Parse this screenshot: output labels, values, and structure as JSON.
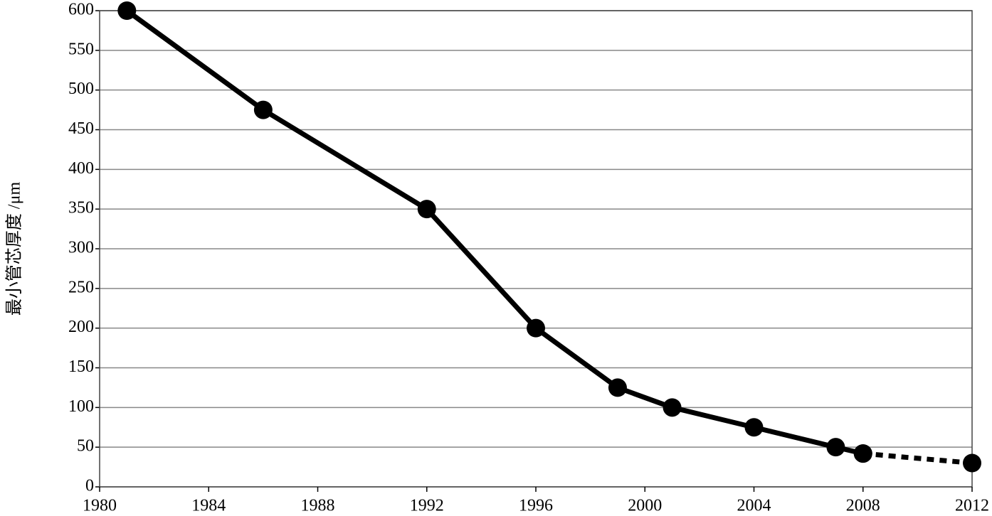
{
  "chart_data": {
    "type": "line",
    "y_label": "最小管芯厚度 /μm",
    "x": [
      1981,
      1986,
      1992,
      1996,
      1999,
      2001,
      2004,
      2007,
      2008,
      2012
    ],
    "series": [
      {
        "color": "#000000",
        "dash": false,
        "values": [
          600,
          475,
          350,
          200,
          125,
          100,
          75,
          50,
          42,
          null
        ]
      },
      {
        "color": "#000000",
        "dash": true,
        "values": [
          null,
          null,
          null,
          null,
          null,
          null,
          null,
          null,
          42,
          30
        ]
      }
    ],
    "xlim": [
      1980,
      2012
    ],
    "xticks": [
      1980,
      1984,
      1988,
      1992,
      1996,
      2000,
      2004,
      2008,
      2012
    ],
    "ylim": [
      0,
      600
    ],
    "yticks": [
      0,
      50,
      100,
      150,
      200,
      250,
      300,
      350,
      400,
      450,
      500,
      550,
      600
    ],
    "grid": true
  }
}
